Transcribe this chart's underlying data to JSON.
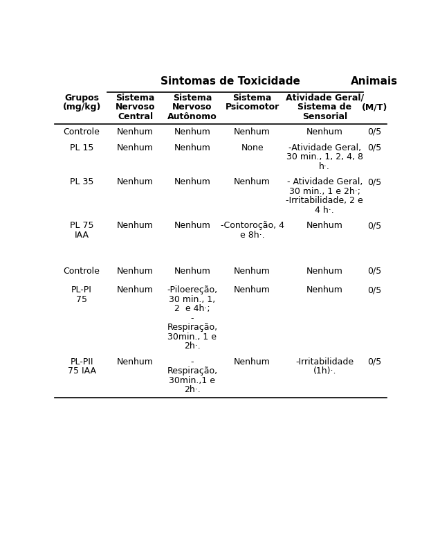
{
  "bg_color": "#ffffff",
  "text_color": "#000000",
  "title_toxicidade": "Sintomas de Toxicidade",
  "title_animais": "Animais",
  "header_grupos_line1": "Grupos",
  "header_grupos_line2": "(mg/kg)",
  "header_mt": "(M/T)",
  "col_sub_headers": [
    [
      "Sistema",
      "Nervoso",
      "Central"
    ],
    [
      "Sistema",
      "Nervoso",
      "Autônomo"
    ],
    [
      "Sistema",
      "Psicomotor",
      ""
    ],
    [
      "Atividade Geral/",
      "Sistema de",
      "Sensorial"
    ]
  ],
  "rows": [
    {
      "grupo": [
        "Controle"
      ],
      "snc": [
        "Nenhum"
      ],
      "sna": [
        "Nenhum"
      ],
      "sp": [
        "Nenhum"
      ],
      "ag": [
        "Nenhum"
      ],
      "mt": "0/5"
    },
    {
      "grupo": [
        "PL 15"
      ],
      "snc": [
        "Nenhum"
      ],
      "sna": [
        "Nenhum"
      ],
      "sp": [
        "None"
      ],
      "ag": [
        "-Atividade Geral,",
        "30 min., 1, 2, 4, 8",
        "h·."
      ],
      "mt": "0/5"
    },
    {
      "grupo": [
        "PL 35"
      ],
      "snc": [
        "Nenhum"
      ],
      "sna": [
        "Nenhum"
      ],
      "sp": [
        "Nenhum"
      ],
      "ag": [
        "- Atividade Geral,",
        "30 min., 1 e 2h·;",
        "-Irritabilidade, 2 e",
        "4 h·."
      ],
      "mt": "0/5"
    },
    {
      "grupo": [
        "PL 75",
        "IAA"
      ],
      "snc": [
        "Nenhum"
      ],
      "sna": [
        "Nenhum"
      ],
      "sp": [
        "-Contoroção, 4",
        "e 8h·."
      ],
      "ag": [
        "Nenhum"
      ],
      "mt": "0/5"
    },
    {
      "grupo": [
        "Controle"
      ],
      "snc": [
        "Nenhum"
      ],
      "sna": [
        "Nenhum"
      ],
      "sp": [
        "Nenhum"
      ],
      "ag": [
        "Nenhum"
      ],
      "mt": "0/5"
    },
    {
      "grupo": [
        "PL-PI",
        "75"
      ],
      "snc": [
        "Nenhum"
      ],
      "sna": [
        "-Piloereção,",
        "30 min., 1,",
        "2  e 4h·;",
        "-",
        "Respiração,",
        "30min., 1 e",
        "2h·."
      ],
      "sp": [
        "Nenhum"
      ],
      "ag": [
        "Nenhum"
      ],
      "mt": "0/5"
    },
    {
      "grupo": [
        "PL-PII",
        "75 IAA"
      ],
      "snc": [
        "Nenhum"
      ],
      "sna": [
        "-",
        "Respiração,",
        "30min.,1 e",
        "2h·."
      ],
      "sp": [
        "Nenhum"
      ],
      "ag": [
        "-Irritabilidade",
        "(1h)·."
      ],
      "mt": "0/5"
    }
  ]
}
